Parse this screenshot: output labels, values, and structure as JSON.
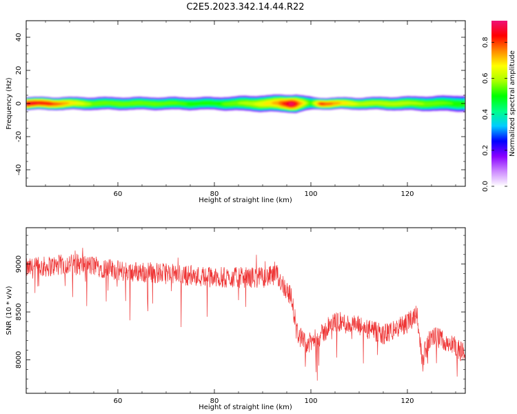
{
  "title": "C2E5.2023.342.14.44.R22",
  "chart_data": [
    {
      "type": "heatmap",
      "title": "",
      "xlabel": "Height of straight line (km)",
      "ylabel": "Frequency (Hz)",
      "xlim": [
        41,
        132
      ],
      "ylim": [
        -50,
        50
      ],
      "xticks": [
        60,
        80,
        100,
        120
      ],
      "yticks": [
        -40,
        -20,
        0,
        20,
        40
      ],
      "colorbar": {
        "label": "Normalized spectral amplitude",
        "range": [
          0,
          0.92
        ],
        "ticks": [
          0.0,
          0.2,
          0.4,
          0.6,
          0.8
        ],
        "colormap": [
          "#ffffff",
          "#cc88ff",
          "#8800ff",
          "#0000ff",
          "#00ccff",
          "#00ff88",
          "#00ff00",
          "#aaff00",
          "#ffff00",
          "#ff8800",
          "#ff0000",
          "#ee1177"
        ]
      },
      "band": {
        "center_hz": 0,
        "core_amplitude": [
          {
            "x": 41,
            "a": 0.85
          },
          {
            "x": 46,
            "a": 0.8
          },
          {
            "x": 55,
            "a": 0.55
          },
          {
            "x": 65,
            "a": 0.55
          },
          {
            "x": 80,
            "a": 0.5
          },
          {
            "x": 88,
            "a": 0.6
          },
          {
            "x": 93,
            "a": 0.72
          },
          {
            "x": 96,
            "a": 0.9
          },
          {
            "x": 100,
            "a": 0.5
          },
          {
            "x": 102,
            "a": 0.8
          },
          {
            "x": 110,
            "a": 0.6
          },
          {
            "x": 118,
            "a": 0.6
          },
          {
            "x": 125,
            "a": 0.55
          },
          {
            "x": 132,
            "a": 0.5
          }
        ],
        "halfwidth_hz": [
          {
            "x": 41,
            "w": 3.5
          },
          {
            "x": 80,
            "w": 3.5
          },
          {
            "x": 90,
            "w": 4.5
          },
          {
            "x": 97,
            "w": 5.0
          },
          {
            "x": 101,
            "w": 3.2
          },
          {
            "x": 110,
            "w": 3.3
          },
          {
            "x": 132,
            "w": 4.5
          }
        ]
      }
    },
    {
      "type": "line",
      "title": "",
      "xlabel": "Height of straight line (km)",
      "ylabel": "SNR (10 * v/v)",
      "xlim": [
        41,
        132
      ],
      "ylim": [
        7650,
        9380
      ],
      "xticks": [
        60,
        80,
        100,
        120
      ],
      "yticks": [
        8000,
        8500,
        9000
      ],
      "series": [
        {
          "color": "#ee3333",
          "trend": [
            {
              "x": 41,
              "y": 8950
            },
            {
              "x": 50,
              "y": 9000
            },
            {
              "x": 55,
              "y": 8980
            },
            {
              "x": 60,
              "y": 8930
            },
            {
              "x": 70,
              "y": 8900
            },
            {
              "x": 80,
              "y": 8860
            },
            {
              "x": 90,
              "y": 8860
            },
            {
              "x": 93,
              "y": 8880
            },
            {
              "x": 96,
              "y": 8650
            },
            {
              "x": 97,
              "y": 8300
            },
            {
              "x": 99,
              "y": 8150
            },
            {
              "x": 102,
              "y": 8250
            },
            {
              "x": 105,
              "y": 8400
            },
            {
              "x": 110,
              "y": 8350
            },
            {
              "x": 115,
              "y": 8260
            },
            {
              "x": 120,
              "y": 8380
            },
            {
              "x": 122,
              "y": 8500
            },
            {
              "x": 123,
              "y": 8000
            },
            {
              "x": 125,
              "y": 8250
            },
            {
              "x": 128,
              "y": 8200
            },
            {
              "x": 132,
              "y": 8050
            }
          ],
          "noise_amplitude": 110
        }
      ]
    }
  ]
}
